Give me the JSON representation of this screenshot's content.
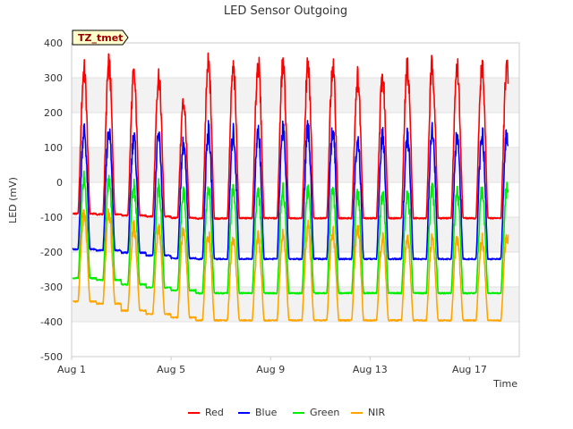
{
  "chart_data": {
    "type": "line",
    "title": "LED Sensor Outgoing",
    "xlabel": "Time",
    "ylabel": "LED (mV)",
    "annotation": "TZ_tmet",
    "ylim": [
      -500,
      400
    ],
    "xlim": [
      "2023-08-01",
      "2023-08-19"
    ],
    "yticks": [
      -500,
      -400,
      -300,
      -200,
      -100,
      0,
      100,
      200,
      300,
      400
    ],
    "xticks": [
      "Aug 1",
      "Aug 5",
      "Aug 9",
      "Aug 13",
      "Aug 17"
    ],
    "grid": true,
    "legend_position": "bottom",
    "days": [
      "Aug 1",
      "Aug 2",
      "Aug 3",
      "Aug 4",
      "Aug 5",
      "Aug 6",
      "Aug 7",
      "Aug 8",
      "Aug 9",
      "Aug 10",
      "Aug 11",
      "Aug 12",
      "Aug 13",
      "Aug 14",
      "Aug 15",
      "Aug 16",
      "Aug 17",
      "Aug 18"
    ],
    "series": [
      {
        "name": "Red",
        "color": "#ff0000",
        "baseline": [
          -90,
          -92,
          -95,
          -98,
          -102,
          -104,
          -103,
          -103,
          -103,
          -103,
          -103,
          -103,
          -103,
          -103,
          -103,
          -103,
          -103,
          -103
        ],
        "peak": [
          320,
          335,
          305,
          305,
          230,
          335,
          320,
          340,
          335,
          330,
          330,
          300,
          300,
          330,
          335,
          330,
          330,
          325
        ]
      },
      {
        "name": "Blue",
        "color": "#0000ff",
        "baseline": [
          -192,
          -195,
          -202,
          -210,
          -218,
          -220,
          -220,
          -220,
          -220,
          -220,
          -220,
          -220,
          -220,
          -220,
          -220,
          -220,
          -220,
          -220
        ],
        "peak": [
          150,
          150,
          130,
          130,
          110,
          145,
          140,
          145,
          160,
          150,
          150,
          125,
          130,
          130,
          150,
          140,
          140,
          140
        ]
      },
      {
        "name": "Green",
        "color": "#00ee00",
        "baseline": [
          -275,
          -280,
          -293,
          -302,
          -310,
          -318,
          -318,
          -318,
          -318,
          -318,
          -318,
          -318,
          -318,
          -318,
          -318,
          -318,
          -318,
          -318
        ],
        "peak": [
          10,
          10,
          -10,
          -15,
          -30,
          -20,
          -20,
          -20,
          -20,
          -20,
          -20,
          -30,
          -35,
          -35,
          -20,
          -25,
          -25,
          -20
        ]
      },
      {
        "name": "NIR",
        "color": "#ffa500",
        "baseline": [
          -342,
          -348,
          -368,
          -378,
          -388,
          -396,
          -396,
          -396,
          -396,
          -396,
          -396,
          -396,
          -396,
          -396,
          -396,
          -396,
          -396,
          -396
        ],
        "peak": [
          -90,
          -90,
          -130,
          -130,
          -130,
          -150,
          -160,
          -160,
          -150,
          -130,
          -140,
          -125,
          -160,
          -160,
          -160,
          -165,
          -165,
          -150
        ]
      }
    ]
  }
}
